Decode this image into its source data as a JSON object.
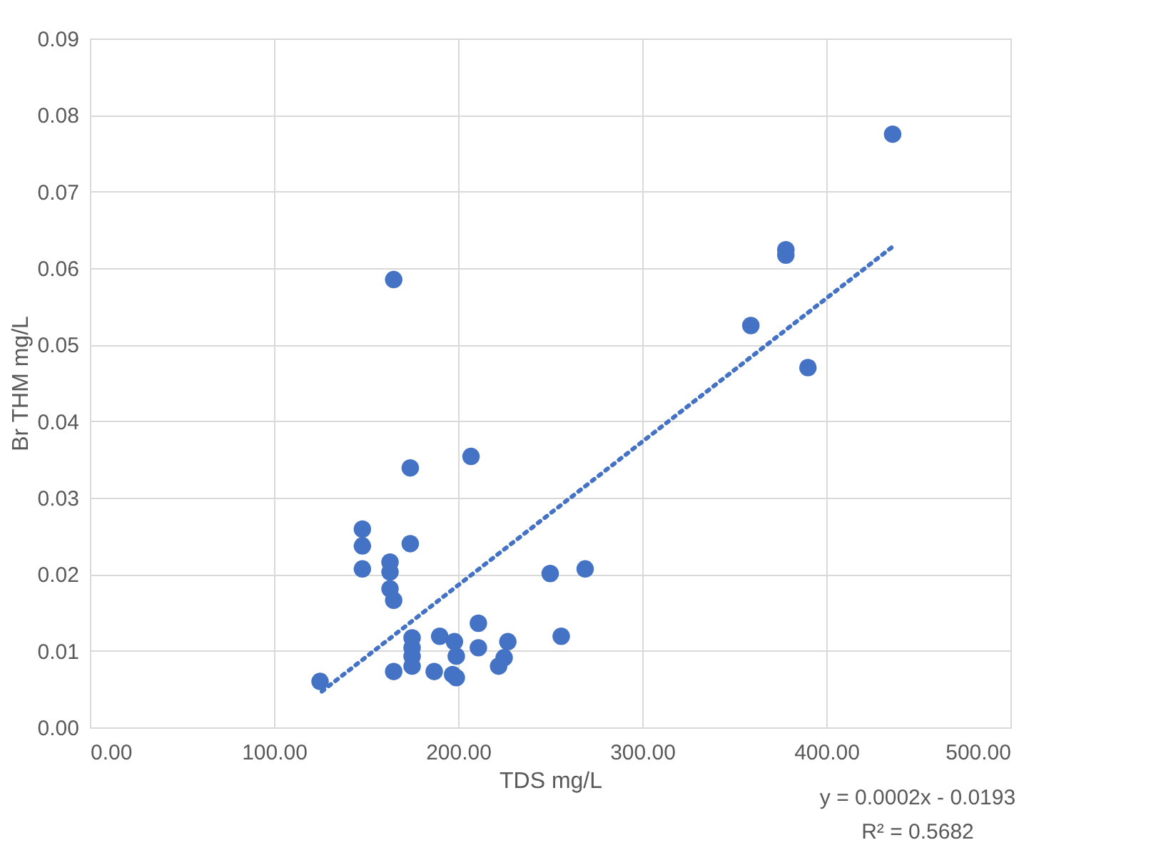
{
  "chart_data": {
    "type": "scatter",
    "xlabel": "TDS mg/L",
    "ylabel": "Br THM mg/L",
    "xlim": [
      0,
      500
    ],
    "ylim": [
      0,
      0.09
    ],
    "xticks": [
      {
        "value": 0,
        "label": "0.00"
      },
      {
        "value": 100,
        "label": "100.00"
      },
      {
        "value": 200,
        "label": "200.00"
      },
      {
        "value": 300,
        "label": "300.00"
      },
      {
        "value": 400,
        "label": "400.00"
      },
      {
        "value": 500,
        "label": "500.00"
      }
    ],
    "yticks": [
      {
        "value": 0,
        "label": "0.00"
      },
      {
        "value": 0.01,
        "label": "0.01"
      },
      {
        "value": 0.02,
        "label": "0.02"
      },
      {
        "value": 0.03,
        "label": "0.03"
      },
      {
        "value": 0.04,
        "label": "0.04"
      },
      {
        "value": 0.05,
        "label": "0.05"
      },
      {
        "value": 0.06,
        "label": "0.06"
      },
      {
        "value": 0.07,
        "label": "0.07"
      },
      {
        "value": 0.08,
        "label": "0.08"
      },
      {
        "value": 0.09,
        "label": "0.09"
      }
    ],
    "grid": true,
    "marker": "circle",
    "annotations": [
      "y = 0.0002x - 0.0193",
      "R² = 0.5682"
    ],
    "series": [
      {
        "color": "#4472c4",
        "x": [
          125,
          165,
          148,
          148,
          148,
          163,
          163,
          163,
          165,
          174,
          174,
          207,
          165,
          175,
          175,
          175,
          175,
          187,
          190,
          197,
          199,
          198,
          199,
          211,
          211,
          227,
          225,
          222,
          250,
          269,
          256,
          359,
          378,
          378,
          390,
          436
        ],
        "values": [
          0.006,
          0.0585,
          0.0259,
          0.0237,
          0.0207,
          0.0216,
          0.0203,
          0.0181,
          0.0166,
          0.0339,
          0.024,
          0.0354,
          0.0073,
          0.0117,
          0.0104,
          0.0093,
          0.008,
          0.0073,
          0.0119,
          0.0069,
          0.0065,
          0.0112,
          0.0093,
          0.0136,
          0.0104,
          0.0112,
          0.0091,
          0.008,
          0.0201,
          0.0207,
          0.0119,
          0.0525,
          0.0624,
          0.0617,
          0.047,
          0.0775
        ]
      },
      {
        "type": "line",
        "color": "#4472c4",
        "line_style": "dotted",
        "marker": "none",
        "x": [
          126,
          436
        ],
        "values": [
          0.0047,
          0.0628
        ]
      }
    ]
  }
}
